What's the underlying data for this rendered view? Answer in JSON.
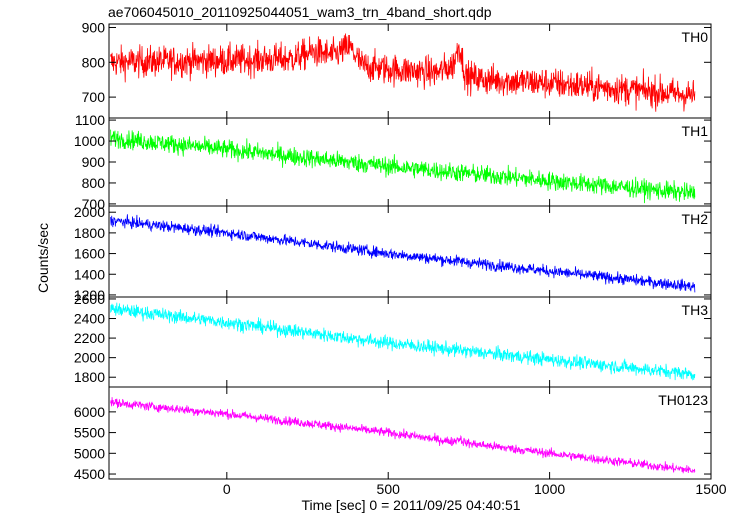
{
  "chart_data": {
    "type": "line",
    "title": "ae706045010_20110925044051_wam3_trn_4band_short.qdp",
    "xlabel": "Time [sec] 0 = 2011/09/25 04:40:51",
    "ylabel": "Counts/sec",
    "xlim": [
      -365,
      1500
    ],
    "xticks": [
      0,
      500,
      1000,
      1500
    ],
    "xtick_labels": [
      "0",
      "500",
      "1000",
      "1500"
    ],
    "x_data_range": [
      -360,
      1450
    ],
    "grid": false,
    "panels": [
      {
        "name": "TH0",
        "color": "#ff0000",
        "ylim": [
          640,
          910
        ],
        "yticks": [
          700,
          800,
          900
        ],
        "ytick_labels": [
          "700",
          "800",
          "900"
        ],
        "trend_x": [
          -360,
          0,
          200,
          270,
          330,
          380,
          420,
          500,
          650,
          700,
          720,
          740,
          800,
          1000,
          1200,
          1450
        ],
        "trend_y": [
          800,
          805,
          810,
          830,
          820,
          845,
          790,
          780,
          770,
          790,
          850,
          760,
          750,
          740,
          725,
          705
        ],
        "noise_amplitude": 45
      },
      {
        "name": "TH1",
        "color": "#00ff00",
        "ylim": [
          690,
          1110
        ],
        "yticks": [
          700,
          800,
          900,
          1000,
          1100
        ],
        "ytick_labels": [
          "700",
          "800",
          "900",
          "1000",
          "1100"
        ],
        "trend_x": [
          -360,
          0,
          500,
          1000,
          1450
        ],
        "trend_y": [
          1015,
          960,
          880,
          810,
          750
        ],
        "noise_amplitude": 45
      },
      {
        "name": "TH2",
        "color": "#0000ff",
        "ylim": [
          1180,
          2060
        ],
        "yticks": [
          1200,
          1400,
          1600,
          1800,
          2000
        ],
        "ytick_labels": [
          "1200",
          "1400",
          "1600",
          "1800",
          "2000"
        ],
        "trend_x": [
          -360,
          0,
          500,
          1000,
          1450
        ],
        "trend_y": [
          1920,
          1800,
          1600,
          1430,
          1280
        ],
        "noise_amplitude": 55
      },
      {
        "name": "TH3",
        "color": "#00ffff",
        "ylim": [
          1700,
          2620
        ],
        "yticks": [
          1800,
          2000,
          2200,
          2400,
          2600
        ],
        "ytick_labels": [
          "1800",
          "2000",
          "2200",
          "2400",
          "2600"
        ],
        "trend_x": [
          -360,
          0,
          500,
          1000,
          1450
        ],
        "trend_y": [
          2500,
          2360,
          2150,
          1980,
          1830
        ],
        "noise_amplitude": 70
      },
      {
        "name": "TH0123",
        "color": "#ff00ff",
        "ylim": [
          4380,
          6600
        ],
        "yticks": [
          4500,
          5000,
          5500,
          6000
        ],
        "ytick_labels": [
          "4500",
          "5000",
          "5500",
          "6000"
        ],
        "trend_x": [
          -360,
          0,
          500,
          700,
          720,
          740,
          1000,
          1450
        ],
        "trend_y": [
          6230,
          5950,
          5500,
          5280,
          5360,
          5250,
          5000,
          4580
        ],
        "noise_amplitude": 110
      }
    ]
  }
}
